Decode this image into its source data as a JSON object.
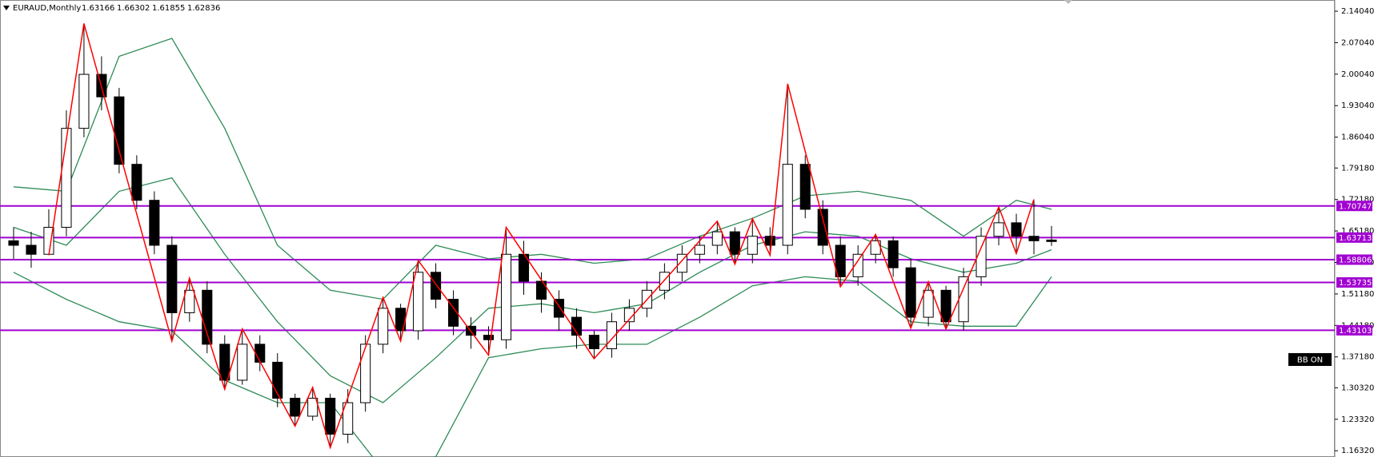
{
  "chart_data": {
    "type": "candlestick",
    "title": "EURAUD,Monthly",
    "header_ohlc": [
      1.63166,
      1.66302,
      1.61855,
      1.62836
    ],
    "open": [
      1.63,
      1.62,
      1.6,
      1.66,
      1.88,
      2.0,
      1.95,
      1.8,
      1.72,
      1.62,
      1.47,
      1.52,
      1.4,
      1.32,
      1.4,
      1.36,
      1.28,
      1.24,
      1.28,
      1.2,
      1.27,
      1.4,
      1.48,
      1.43,
      1.56,
      1.5,
      1.44,
      1.42,
      1.41,
      1.6,
      1.54,
      1.5,
      1.46,
      1.42,
      1.39,
      1.45,
      1.48,
      1.52,
      1.56,
      1.6,
      1.62,
      1.65,
      1.6,
      1.64,
      1.62,
      1.8,
      1.7,
      1.62,
      1.55,
      1.6,
      1.63,
      1.57,
      1.46,
      1.52,
      1.45,
      1.55,
      1.64,
      1.67,
      1.64,
      1.63166
    ],
    "high": [
      1.66,
      1.65,
      1.7,
      1.92,
      2.113,
      2.04,
      1.97,
      1.82,
      1.74,
      1.64,
      1.547,
      1.54,
      1.42,
      1.434,
      1.42,
      1.38,
      1.29,
      1.304,
      1.29,
      1.3,
      1.42,
      1.504,
      1.49,
      1.586,
      1.58,
      1.52,
      1.46,
      1.44,
      1.66,
      1.63,
      1.56,
      1.52,
      1.48,
      1.43,
      1.47,
      1.5,
      1.54,
      1.58,
      1.62,
      1.64,
      1.6735,
      1.66,
      1.679,
      1.66,
      1.979,
      1.82,
      1.72,
      1.64,
      1.62,
      1.644,
      1.64,
      1.59,
      1.539,
      1.53,
      1.57,
      1.66,
      1.705,
      1.69,
      1.722,
      1.66302
    ],
    "low": [
      1.59,
      1.57,
      1.598,
      1.64,
      1.86,
      1.92,
      1.78,
      1.7,
      1.6,
      1.407,
      1.45,
      1.38,
      1.3,
      1.31,
      1.34,
      1.26,
      1.218,
      1.23,
      1.17,
      1.18,
      1.25,
      1.38,
      1.407,
      1.41,
      1.48,
      1.42,
      1.39,
      1.376,
      1.39,
      1.51,
      1.47,
      1.43,
      1.39,
      1.368,
      1.37,
      1.43,
      1.46,
      1.5,
      1.54,
      1.58,
      1.6,
      1.578,
      1.58,
      1.598,
      1.6,
      1.68,
      1.6,
      1.528,
      1.53,
      1.58,
      1.55,
      1.436,
      1.44,
      1.434,
      1.43,
      1.53,
      1.62,
      1.6015,
      1.6,
      1.61855
    ],
    "close": [
      1.62,
      1.6,
      1.66,
      1.88,
      2.0,
      1.95,
      1.8,
      1.72,
      1.62,
      1.47,
      1.52,
      1.4,
      1.32,
      1.4,
      1.36,
      1.28,
      1.24,
      1.28,
      1.2,
      1.27,
      1.4,
      1.48,
      1.43,
      1.56,
      1.5,
      1.44,
      1.42,
      1.41,
      1.6,
      1.54,
      1.5,
      1.46,
      1.42,
      1.39,
      1.45,
      1.48,
      1.52,
      1.56,
      1.6,
      1.62,
      1.65,
      1.6,
      1.64,
      1.62,
      1.8,
      1.7,
      1.62,
      1.55,
      1.6,
      1.63,
      1.57,
      1.46,
      1.52,
      1.45,
      1.55,
      1.64,
      1.67,
      1.64,
      1.63,
      1.62836
    ],
    "ylim": [
      1.1493,
      2.1653
    ],
    "yticks": [
      {
        "value": 2.1404,
        "label": "2.14040"
      },
      {
        "value": 2.0704,
        "label": "2.07040"
      },
      {
        "value": 2.0004,
        "label": "2.00040"
      },
      {
        "value": 1.9304,
        "label": "1.93040"
      },
      {
        "value": 1.8604,
        "label": "1.86040"
      },
      {
        "value": 1.7918,
        "label": "1.79180"
      },
      {
        "value": 1.7218,
        "label": "1.72180"
      },
      {
        "value": 1.6518,
        "label": "1.65180"
      },
      {
        "value": 1.5818,
        "label": "1.58180"
      },
      {
        "value": 1.5118,
        "label": "1.51180"
      },
      {
        "value": 1.4418,
        "label": "1.44180"
      },
      {
        "value": 1.3718,
        "label": "1.37180"
      },
      {
        "value": 1.3032,
        "label": "1.30320"
      },
      {
        "value": 1.2332,
        "label": "1.23320"
      },
      {
        "value": 1.1632,
        "label": "1.16320"
      }
    ],
    "levels": {
      "color": "#a000d0",
      "values": [
        1.70747,
        1.63713,
        1.58806,
        1.53735,
        1.43103
      ]
    },
    "zigzag": {
      "color": "#ff0000",
      "x": [
        2,
        4,
        9,
        10,
        12,
        13,
        16,
        17,
        18,
        21,
        22,
        23,
        27,
        28,
        33,
        40,
        41,
        42,
        43,
        44,
        47,
        49,
        51,
        52,
        53,
        56,
        57,
        58
      ],
      "values": [
        1.598,
        2.113,
        1.407,
        1.547,
        1.3,
        1.434,
        1.218,
        1.304,
        1.17,
        1.504,
        1.407,
        1.586,
        1.376,
        1.66,
        1.368,
        1.6735,
        1.578,
        1.679,
        1.598,
        1.979,
        1.528,
        1.644,
        1.436,
        1.539,
        1.434,
        1.705,
        1.6015,
        1.722
      ]
    },
    "bollinger": {
      "color": "#2e8b57",
      "x": [
        0,
        3,
        6,
        9,
        12,
        15,
        18,
        21,
        24,
        27,
        30,
        33,
        36,
        39,
        42,
        45,
        48,
        51,
        54,
        57,
        59
      ],
      "upper": [
        1.75,
        1.74,
        2.04,
        2.08,
        1.88,
        1.62,
        1.52,
        1.5,
        1.62,
        1.59,
        1.6,
        1.58,
        1.59,
        1.64,
        1.68,
        1.73,
        1.74,
        1.72,
        1.64,
        1.72,
        1.7
      ],
      "middle": [
        1.66,
        1.62,
        1.74,
        1.77,
        1.6,
        1.45,
        1.33,
        1.27,
        1.37,
        1.48,
        1.49,
        1.47,
        1.49,
        1.56,
        1.62,
        1.65,
        1.64,
        1.59,
        1.56,
        1.58,
        1.61
      ],
      "lower": [
        1.56,
        1.5,
        1.45,
        1.43,
        1.32,
        1.27,
        1.27,
        1.12,
        1.15,
        1.37,
        1.39,
        1.4,
        1.4,
        1.46,
        1.53,
        1.55,
        1.54,
        1.45,
        1.44,
        1.44,
        1.55
      ]
    },
    "badge": "BB ON"
  }
}
